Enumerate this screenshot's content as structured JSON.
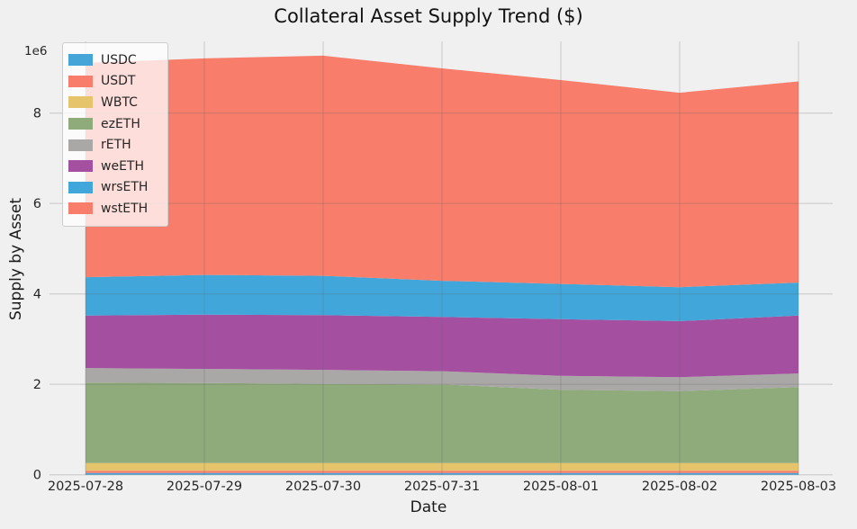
{
  "figure": {
    "background_color": "#f0f0f0",
    "grid_color": "#d4d4d4",
    "text_color": "#262626"
  },
  "chart_data": {
    "type": "area",
    "stacked": true,
    "title": "Collateral Asset Supply Trend ($)",
    "xlabel": "Date",
    "ylabel": "Supply by Asset",
    "y_offset_label": "1e6",
    "grid": true,
    "legend_position": "upper left",
    "x": [
      "2025-07-28",
      "2025-07-29",
      "2025-07-30",
      "2025-07-31",
      "2025-08-01",
      "2025-08-02",
      "2025-08-03"
    ],
    "ylim": [
      0,
      9600000
    ],
    "y_ticks": [
      0,
      2000000,
      4000000,
      6000000,
      8000000
    ],
    "y_tick_labels": [
      "0",
      "2",
      "4",
      "6",
      "8"
    ],
    "series": [
      {
        "name": "USDC",
        "color": "#45a5d8",
        "values": [
          40000,
          40000,
          40000,
          40000,
          40000,
          40000,
          40000
        ]
      },
      {
        "name": "USDT",
        "color": "#f87d6b",
        "values": [
          50000,
          50000,
          50000,
          50000,
          50000,
          50000,
          50000
        ]
      },
      {
        "name": "WBTC",
        "color": "#e5c46c",
        "values": [
          170000,
          170000,
          170000,
          170000,
          170000,
          170000,
          170000
        ]
      },
      {
        "name": "ezETH",
        "color": "#8fab7c",
        "values": [
          1780000,
          1770000,
          1750000,
          1740000,
          1620000,
          1590000,
          1680000
        ]
      },
      {
        "name": "rETH",
        "color": "#aaa7a7",
        "values": [
          320000,
          310000,
          310000,
          290000,
          310000,
          310000,
          300000
        ]
      },
      {
        "name": "weETH",
        "color": "#a44fa0",
        "values": [
          1160000,
          1200000,
          1210000,
          1200000,
          1250000,
          1240000,
          1280000
        ]
      },
      {
        "name": "wrsETH",
        "color": "#41a7db",
        "values": [
          850000,
          880000,
          870000,
          800000,
          780000,
          750000,
          730000
        ]
      },
      {
        "name": "wstETH",
        "color": "#f87d6b",
        "values": [
          4740000,
          4790000,
          4870000,
          4700000,
          4510000,
          4300000,
          4450000
        ]
      }
    ]
  }
}
